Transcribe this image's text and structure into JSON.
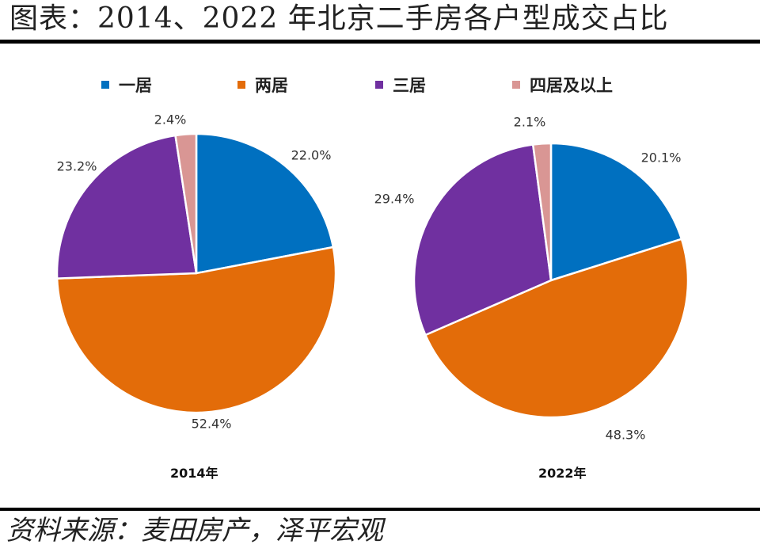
{
  "title": "图表：2014、2022 年北京二手房各户型成交占比",
  "source": "资料来源：麦田房产，泽平宏观",
  "chart_data": {
    "type": "pie",
    "title": "图表：2014、2022 年北京二手房各户型成交占比",
    "categories": [
      "一居",
      "两居",
      "三居",
      "四居及以上"
    ],
    "colors": [
      "#0070C0",
      "#E36C09",
      "#7030A0",
      "#D99694"
    ],
    "value_suffix": "%",
    "legend_position": "top",
    "pies": [
      {
        "name": "2014年",
        "values": [
          22.0,
          52.4,
          23.2,
          2.4
        ]
      },
      {
        "name": "2022年",
        "values": [
          20.1,
          48.3,
          29.4,
          2.1
        ]
      }
    ]
  }
}
